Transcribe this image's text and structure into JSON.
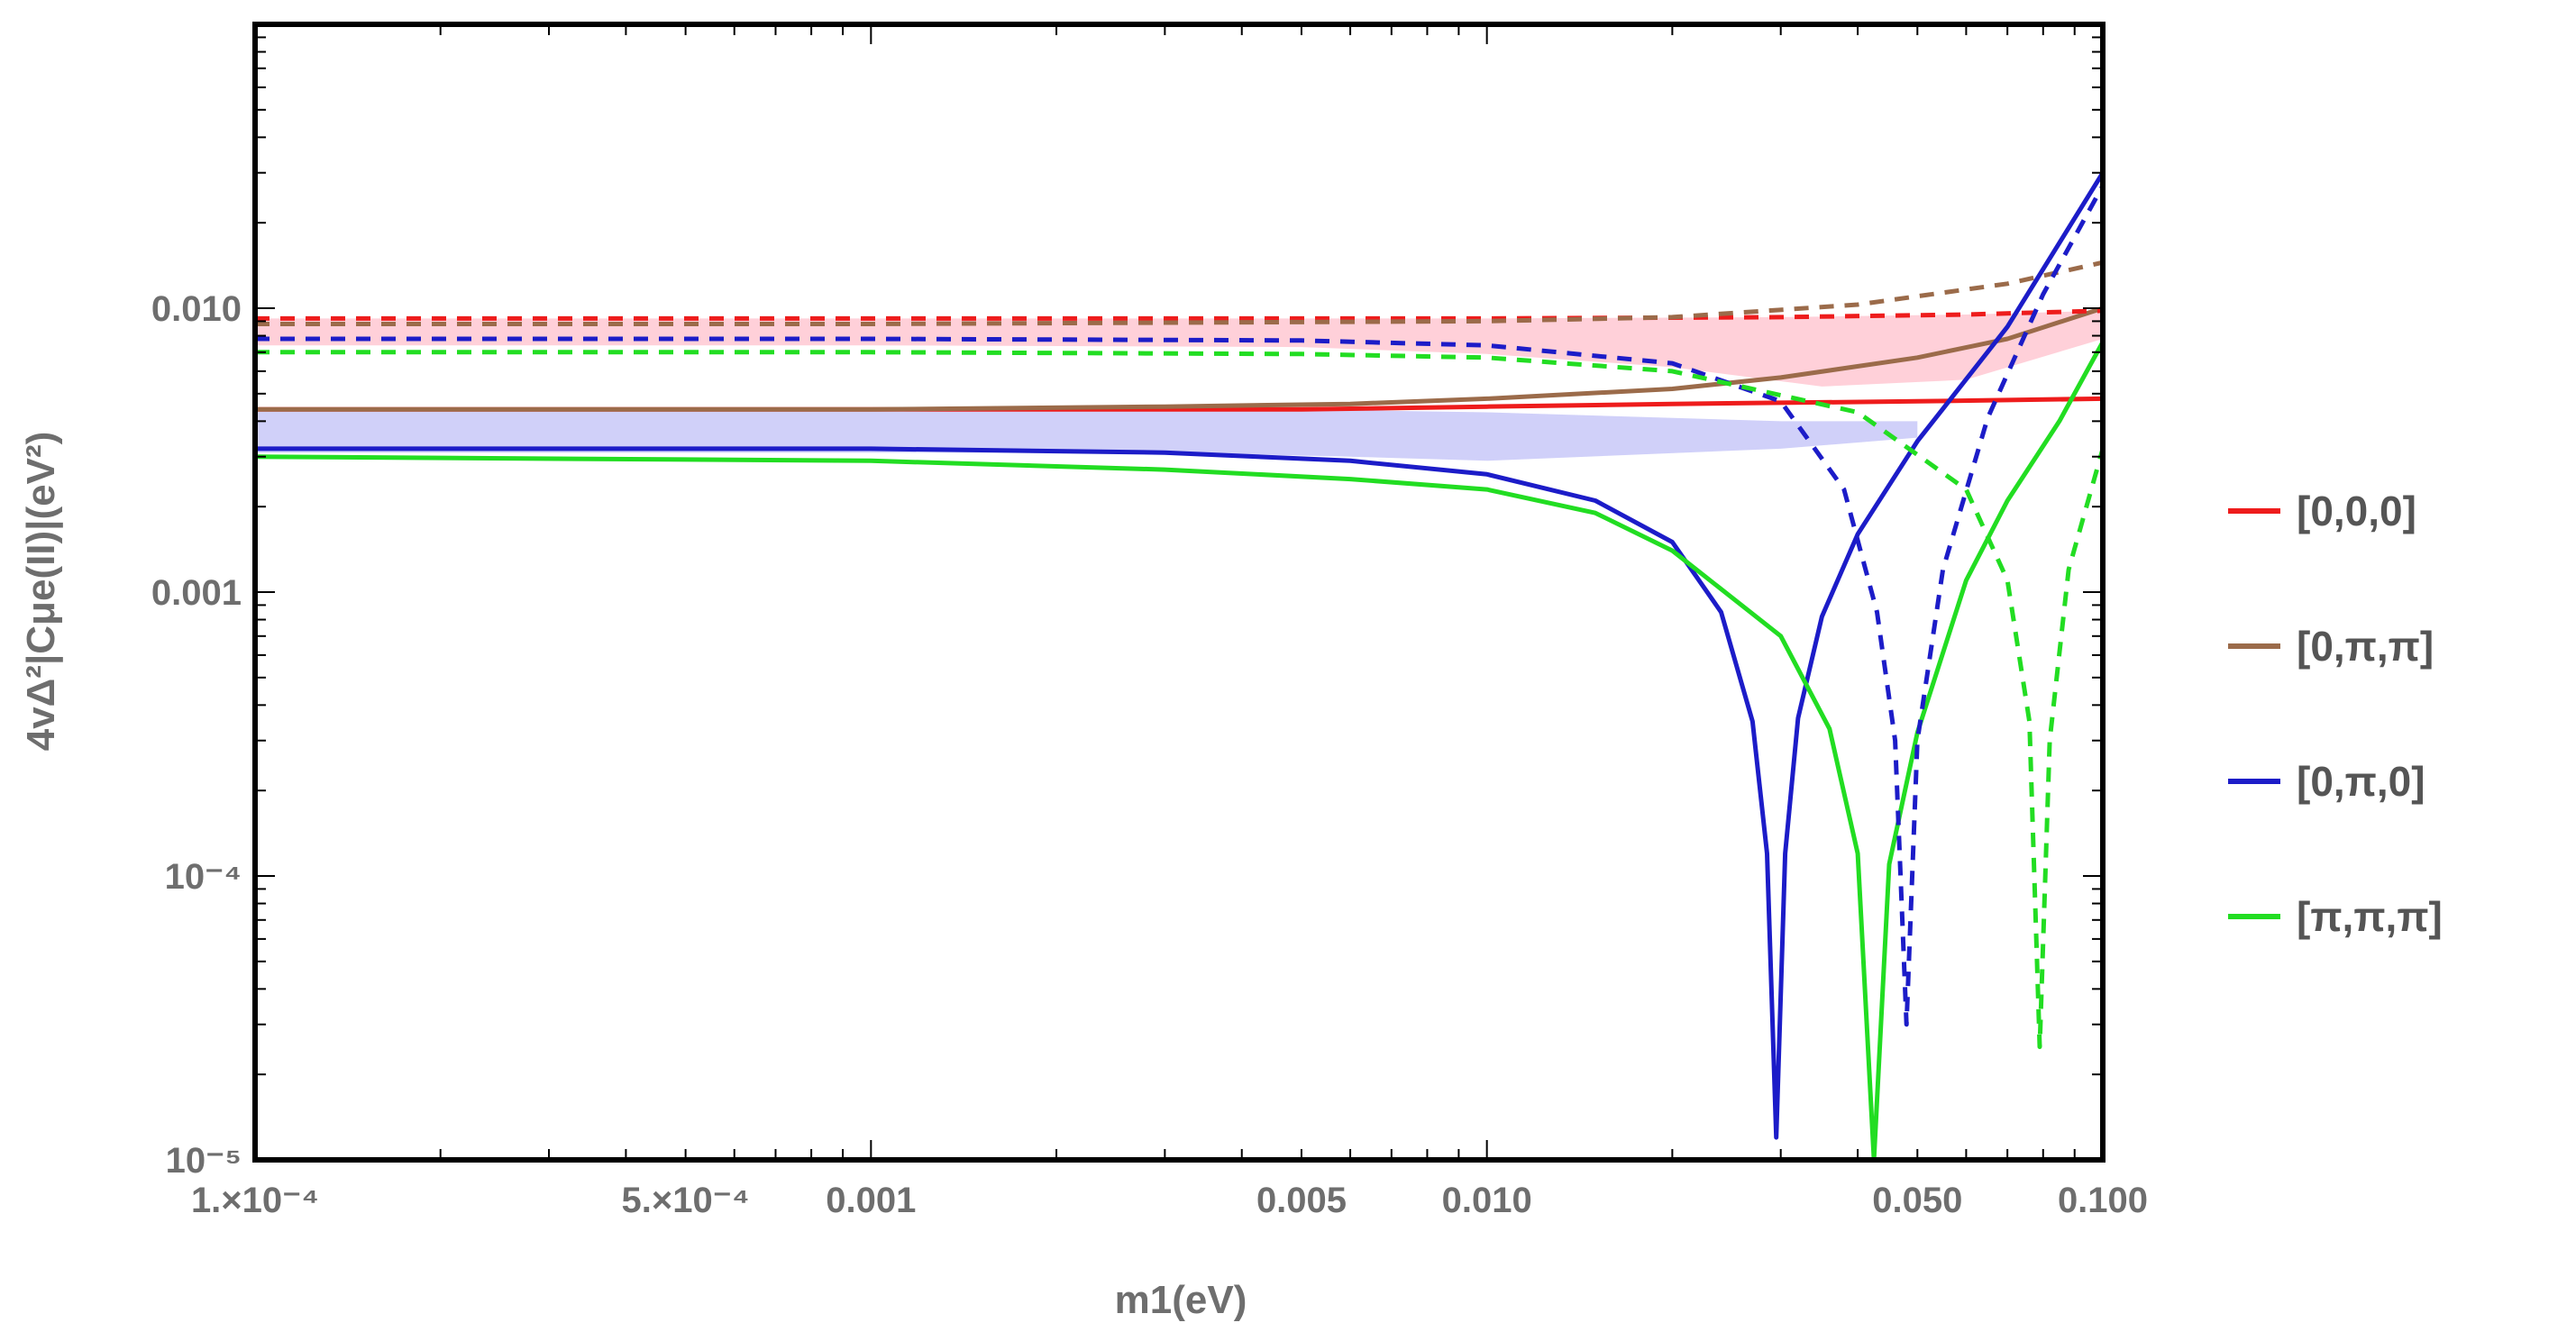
{
  "chart_data": {
    "type": "line",
    "xlabel": "m1(eV)",
    "ylabel": "4vΔ²|Cμe(II)|(eV²)",
    "xscale": "log",
    "yscale": "log",
    "xlim": [
      0.0001,
      0.1
    ],
    "ylim": [
      1e-05,
      0.1
    ],
    "grid": false,
    "legend_position": "right",
    "x_ticks": [
      {
        "value": 0.0001,
        "label": "1.×10⁻⁴"
      },
      {
        "value": 0.0005,
        "label": "5.×10⁻⁴"
      },
      {
        "value": 0.001,
        "label": "0.001"
      },
      {
        "value": 0.005,
        "label": "0.005"
      },
      {
        "value": 0.01,
        "label": "0.010"
      },
      {
        "value": 0.05,
        "label": "0.050"
      },
      {
        "value": 0.1,
        "label": "0.100"
      }
    ],
    "y_ticks": [
      {
        "value": 1e-05,
        "label": "10⁻⁵"
      },
      {
        "value": 0.0001,
        "label": "10⁻⁴"
      },
      {
        "value": 0.001,
        "label": "0.001"
      },
      {
        "value": 0.01,
        "label": "0.010"
      }
    ],
    "bands": [
      {
        "color": "#ffc8d2",
        "upper": [
          [
            0.0001,
            0.0092
          ],
          [
            0.001,
            0.0092
          ],
          [
            0.01,
            0.0092
          ],
          [
            0.03,
            0.0093
          ],
          [
            0.06,
            0.0095
          ],
          [
            0.1,
            0.0098
          ]
        ],
        "lower": [
          [
            0.0001,
            0.0074
          ],
          [
            0.001,
            0.0074
          ],
          [
            0.005,
            0.0073
          ],
          [
            0.01,
            0.0069
          ],
          [
            0.02,
            0.0062
          ],
          [
            0.035,
            0.0053
          ],
          [
            0.06,
            0.0056
          ],
          [
            0.1,
            0.0078
          ]
        ]
      },
      {
        "color": "#c8c8f8",
        "upper": [
          [
            0.0001,
            0.0044
          ],
          [
            0.001,
            0.0044
          ],
          [
            0.005,
            0.0044
          ],
          [
            0.01,
            0.0043
          ],
          [
            0.03,
            0.004
          ],
          [
            0.05,
            0.004
          ]
        ],
        "lower": [
          [
            0.0001,
            0.0031
          ],
          [
            0.001,
            0.0031
          ],
          [
            0.003,
            0.0031
          ],
          [
            0.006,
            0.003
          ],
          [
            0.01,
            0.0029
          ],
          [
            0.03,
            0.0032
          ],
          [
            0.05,
            0.0035
          ]
        ]
      }
    ],
    "series": [
      {
        "name": "[0,0,0]",
        "color": "#ee1c1c",
        "dash": false,
        "points": [
          [
            0.0001,
            0.0044
          ],
          [
            0.001,
            0.0044
          ],
          [
            0.005,
            0.0044
          ],
          [
            0.01,
            0.0045
          ],
          [
            0.02,
            0.0046
          ],
          [
            0.05,
            0.0047
          ],
          [
            0.1,
            0.0048
          ]
        ]
      },
      {
        "name": "[0,π,π]",
        "color": "#9b6b4a",
        "dash": false,
        "points": [
          [
            0.0001,
            0.0044
          ],
          [
            0.001,
            0.0044
          ],
          [
            0.003,
            0.0045
          ],
          [
            0.006,
            0.0046
          ],
          [
            0.01,
            0.0048
          ],
          [
            0.02,
            0.0052
          ],
          [
            0.03,
            0.0057
          ],
          [
            0.05,
            0.0067
          ],
          [
            0.07,
            0.0078
          ],
          [
            0.1,
            0.01
          ]
        ]
      },
      {
        "name": "[0,π,0]",
        "color": "#1c1cc8",
        "dash": false,
        "points": [
          [
            0.0001,
            0.0032
          ],
          [
            0.001,
            0.0032
          ],
          [
            0.003,
            0.0031
          ],
          [
            0.006,
            0.0029
          ],
          [
            0.01,
            0.0026
          ],
          [
            0.015,
            0.0021
          ],
          [
            0.02,
            0.0015
          ],
          [
            0.024,
            0.00085
          ],
          [
            0.027,
            0.00035
          ],
          [
            0.0285,
            0.00012
          ],
          [
            0.0295,
            1.2e-05
          ],
          [
            0.0305,
            0.00012
          ],
          [
            0.032,
            0.00036
          ],
          [
            0.035,
            0.00082
          ],
          [
            0.04,
            0.0016
          ],
          [
            0.05,
            0.0034
          ],
          [
            0.07,
            0.0086
          ],
          [
            0.1,
            0.03
          ]
        ]
      },
      {
        "name": "[π,π,π]",
        "color": "#22dd22",
        "dash": false,
        "points": [
          [
            0.0001,
            0.003
          ],
          [
            0.001,
            0.0029
          ],
          [
            0.003,
            0.0027
          ],
          [
            0.006,
            0.0025
          ],
          [
            0.01,
            0.0023
          ],
          [
            0.015,
            0.0019
          ],
          [
            0.02,
            0.0014
          ],
          [
            0.03,
            0.0007
          ],
          [
            0.036,
            0.00033
          ],
          [
            0.04,
            0.00012
          ],
          [
            0.0425,
            1e-05
          ],
          [
            0.045,
            0.00011
          ],
          [
            0.05,
            0.00032
          ],
          [
            0.06,
            0.0011
          ],
          [
            0.07,
            0.0021
          ],
          [
            0.085,
            0.004
          ],
          [
            0.1,
            0.0076
          ]
        ]
      },
      {
        "name": "",
        "color": "#ee1c1c",
        "dash": true,
        "points": [
          [
            0.0001,
            0.0092
          ],
          [
            0.001,
            0.0092
          ],
          [
            0.01,
            0.0092
          ],
          [
            0.03,
            0.0093
          ],
          [
            0.06,
            0.0095
          ],
          [
            0.1,
            0.0098
          ]
        ]
      },
      {
        "name": "",
        "color": "#9b6b4a",
        "dash": true,
        "points": [
          [
            0.0001,
            0.0088
          ],
          [
            0.001,
            0.0088
          ],
          [
            0.01,
            0.009
          ],
          [
            0.02,
            0.0093
          ],
          [
            0.04,
            0.0103
          ],
          [
            0.07,
            0.0122
          ],
          [
            0.1,
            0.0145
          ]
        ]
      },
      {
        "name": "",
        "color": "#1c1cc8",
        "dash": true,
        "points": [
          [
            0.0001,
            0.0078
          ],
          [
            0.001,
            0.0078
          ],
          [
            0.005,
            0.0077
          ],
          [
            0.01,
            0.0074
          ],
          [
            0.02,
            0.0064
          ],
          [
            0.03,
            0.0047
          ],
          [
            0.038,
            0.0023
          ],
          [
            0.043,
            0.00085
          ],
          [
            0.046,
            0.0003
          ],
          [
            0.048,
            3e-05
          ],
          [
            0.05,
            0.0003
          ],
          [
            0.055,
            0.0012
          ],
          [
            0.065,
            0.0041
          ],
          [
            0.08,
            0.0112
          ],
          [
            0.1,
            0.027
          ]
        ]
      },
      {
        "name": "",
        "color": "#22dd22",
        "dash": true,
        "points": [
          [
            0.0001,
            0.007
          ],
          [
            0.001,
            0.007
          ],
          [
            0.005,
            0.0069
          ],
          [
            0.01,
            0.0067
          ],
          [
            0.02,
            0.006
          ],
          [
            0.04,
            0.0043
          ],
          [
            0.06,
            0.0023
          ],
          [
            0.07,
            0.0011
          ],
          [
            0.076,
            0.00035
          ],
          [
            0.079,
            2.5e-05
          ],
          [
            0.082,
            0.0003
          ],
          [
            0.088,
            0.0012
          ],
          [
            0.1,
            0.0032
          ]
        ]
      }
    ]
  }
}
